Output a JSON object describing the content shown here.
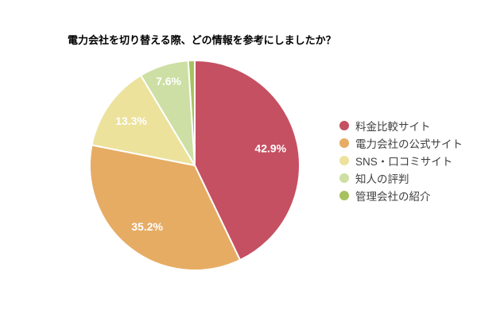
{
  "chart_data": {
    "type": "pie",
    "title": "電力会社を切り替える際、どの情報を参考にしましたか？",
    "unit": "%",
    "direction": "clockwise",
    "start_angle_deg": 0,
    "legend_position": "right",
    "label_color": "#ffffff",
    "slice_border_color": "#ffffff",
    "slices": [
      {
        "label": "料金比較サイト",
        "value": 42.9,
        "display": "42.9%",
        "color": "#c55062"
      },
      {
        "label": "電力会社の公式サイト",
        "value": 35.2,
        "display": "35.2%",
        "color": "#e6ac64"
      },
      {
        "label": "SNS・口コミサイト",
        "value": 13.3,
        "display": "13.3%",
        "color": "#ece29c"
      },
      {
        "label": "知人の評判",
        "value": 7.6,
        "display": "7.6%",
        "color": "#cddfa4"
      },
      {
        "label": "管理会社の紹介",
        "value": 1.0,
        "display": "",
        "color": "#a6c25e"
      }
    ]
  }
}
